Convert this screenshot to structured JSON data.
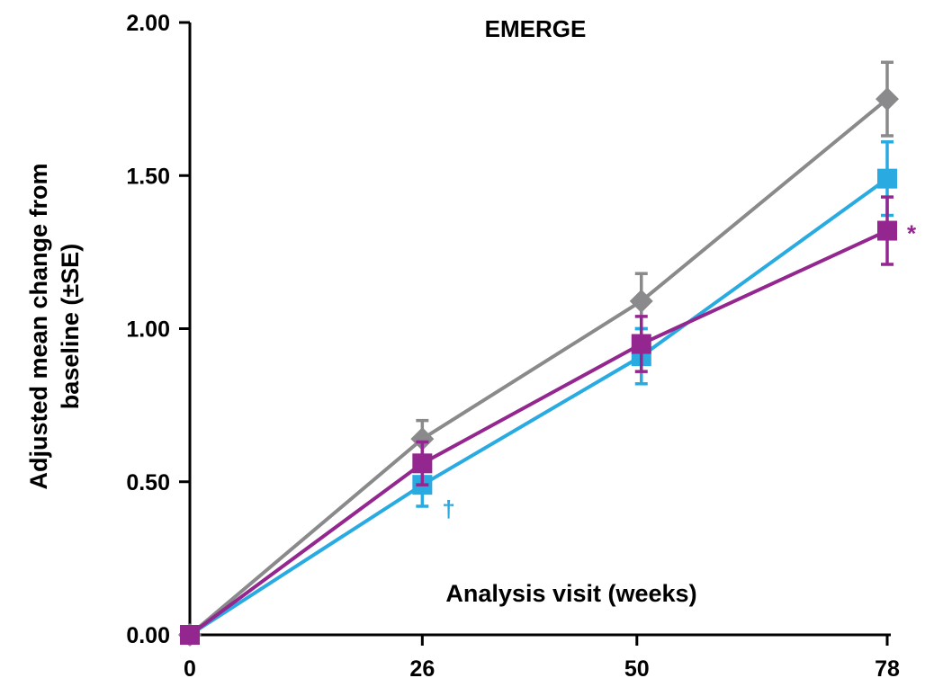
{
  "chart_data": {
    "type": "line",
    "title": "EMERGE",
    "xlabel": "Analysis visit (weeks)",
    "ylabel_lines": [
      "Adjusted mean change from",
      "baseline (±SE)"
    ],
    "x": [
      0,
      26,
      50,
      78
    ],
    "x_tick_labels": [
      "0",
      "26",
      "50",
      "78"
    ],
    "y_tick_labels": [
      "0.00",
      "0.50",
      "1.00",
      "1.50",
      "2.00"
    ],
    "ylim": [
      0,
      2
    ],
    "grid": false,
    "series": [
      {
        "color": "#8a8a8c",
        "marker": "diamond",
        "x": [
          0,
          26,
          50.5,
          78
        ],
        "values": [
          0,
          0.64,
          1.09,
          1.75
        ],
        "se": [
          0,
          0.06,
          0.09,
          0.12
        ]
      },
      {
        "color": "#29abe2",
        "marker": "square",
        "x": [
          0,
          26,
          50.5,
          78
        ],
        "values": [
          0,
          0.49,
          0.91,
          1.49
        ],
        "se": [
          0,
          0.07,
          0.09,
          0.12
        ]
      },
      {
        "color": "#93278f",
        "marker": "square",
        "x": [
          0,
          26,
          50.5,
          78
        ],
        "values": [
          0,
          0.56,
          0.95,
          1.32
        ],
        "se": [
          0,
          0.07,
          0.09,
          0.11
        ]
      }
    ],
    "annotations": [
      {
        "text": "†",
        "color": "#29abe2",
        "series_index": 1,
        "point_index": 1
      },
      {
        "text": "*",
        "color": "#93278f",
        "series_index": 2,
        "point_index": 3
      }
    ]
  }
}
